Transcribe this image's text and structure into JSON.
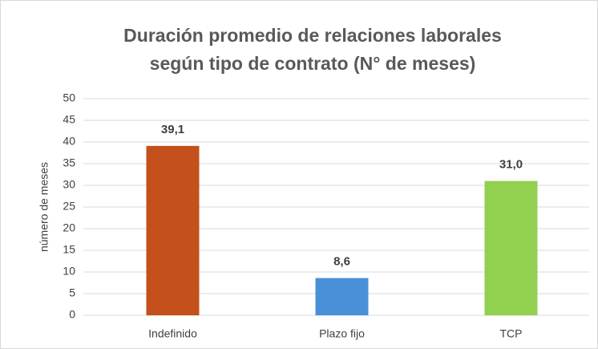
{
  "chart_data": {
    "type": "bar",
    "title": [
      "Duración promedio de relaciones laborales",
      "según tipo de contrato (N° de meses)"
    ],
    "ylabel": "número de meses",
    "categories": [
      "Indefinido",
      "Plazo fijo",
      "TCP"
    ],
    "values": [
      39.1,
      8.6,
      31.0
    ],
    "value_labels": [
      "39,1",
      "8,6",
      "31,0"
    ],
    "colors": [
      "#c4501b",
      "#4a90d9",
      "#92d050"
    ],
    "ylim": [
      0,
      50
    ],
    "yticks": [
      0,
      5,
      10,
      15,
      20,
      25,
      30,
      35,
      40,
      45,
      50
    ],
    "grid": true
  }
}
